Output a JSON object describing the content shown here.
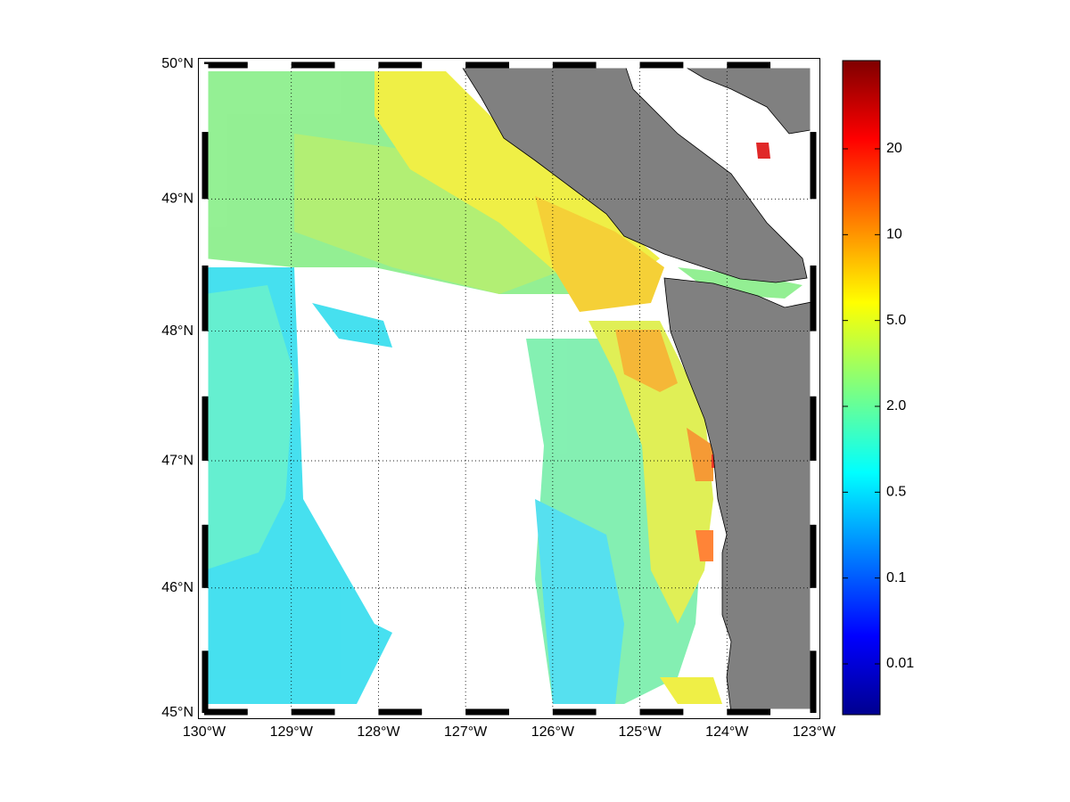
{
  "map": {
    "xlim": [
      -130,
      -123
    ],
    "ylim": [
      45,
      50
    ],
    "xticks": [
      {
        "value": -130,
        "label": "130°W"
      },
      {
        "value": -129,
        "label": "129°W"
      },
      {
        "value": -128,
        "label": "128°W"
      },
      {
        "value": -127,
        "label": "127°W"
      },
      {
        "value": -126,
        "label": "126°W"
      },
      {
        "value": -125,
        "label": "125°W"
      },
      {
        "value": -124,
        "label": "124°W"
      },
      {
        "value": -123,
        "label": "123°W"
      }
    ],
    "yticks": [
      {
        "value": 45,
        "label": "45°N"
      },
      {
        "value": 46,
        "label": "46°N"
      },
      {
        "value": 47,
        "label": "47°N"
      },
      {
        "value": 48,
        "label": "48°N"
      },
      {
        "value": 49,
        "label": "49°N"
      },
      {
        "value": 50,
        "label": "50°N"
      }
    ],
    "grid": true,
    "colorbar": {
      "ticks": [
        0.01,
        0.1,
        0.5,
        {
          "value": 2,
          "label": "2.0"
        },
        {
          "value": 5,
          "label": "5.0"
        },
        10,
        20
      ]
    }
  }
}
